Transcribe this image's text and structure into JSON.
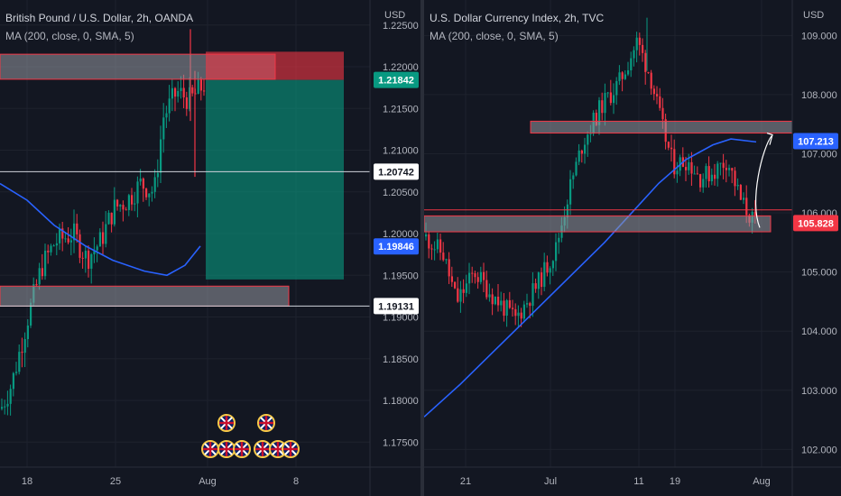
{
  "left": {
    "title": "British Pound / U.S. Dollar, 2h, OANDA",
    "indicator": "MA (200, close, 0, SMA, 5)",
    "currency": "USD",
    "y_ticks": [
      "1.22500",
      "1.22000",
      "1.21500",
      "1.21000",
      "1.20500",
      "1.20000",
      "1.19500",
      "1.19000",
      "1.18500",
      "1.18000",
      "1.17500"
    ],
    "x_ticks": [
      "18",
      "25",
      "Aug",
      "8"
    ],
    "badges": [
      {
        "label": "1.21842",
        "bg": "#089981",
        "fg": "#ffffff"
      },
      {
        "label": "1.20742",
        "bg": "#ffffff",
        "fg": "#131722"
      },
      {
        "label": "1.19846",
        "bg": "#2962ff",
        "fg": "#ffffff"
      },
      {
        "label": "1.19131",
        "bg": "#ffffff",
        "fg": "#131722"
      }
    ]
  },
  "right": {
    "title": "U.S. Dollar Currency Index, 2h, TVC",
    "indicator": "MA (200, close, 0, SMA, 5)",
    "currency": "USD",
    "y_ticks": [
      "109.000",
      "108.000",
      "107.000",
      "106.000",
      "105.000",
      "104.000",
      "103.000",
      "102.000"
    ],
    "x_ticks": [
      "21",
      "Jul",
      "11",
      "19",
      "Aug"
    ],
    "badges": [
      {
        "label": "107.213",
        "bg": "#2962ff",
        "fg": "#ffffff"
      },
      {
        "label": "105.828",
        "bg": "#f23645",
        "fg": "#ffffff"
      }
    ]
  },
  "colors": {
    "up": "#089981",
    "down": "#f23645",
    "ma": "#2962ff",
    "zone_fill": "#9598a1",
    "zone_border": "#f23645",
    "profit": "#089981",
    "loss": "#f23645",
    "grid": "#1e222d"
  },
  "chart_data": [
    {
      "type": "line",
      "name": "GBPUSD 2h",
      "ylim": [
        1.172,
        1.228
      ],
      "approx_close": [
        [
          "Jul 13",
          1.182
        ],
        [
          "Jul 15",
          1.188
        ],
        [
          "Jul 17",
          1.192
        ],
        [
          "Jul 19",
          1.196
        ],
        [
          "Jul 21",
          1.199
        ],
        [
          "Jul 23",
          1.198
        ],
        [
          "Jul 25",
          1.2
        ],
        [
          "Jul 27",
          1.205
        ],
        [
          "Jul 29",
          1.21
        ],
        [
          "Jul 30",
          1.216
        ],
        [
          "Aug 1",
          1.218
        ]
      ],
      "ma200_approx": [
        [
          "Jul 13",
          1.206
        ],
        [
          "Jul 18",
          1.202
        ],
        [
          "Jul 23",
          1.198
        ],
        [
          "Jul 27",
          1.195
        ],
        [
          "Aug 1",
          1.1985
        ]
      ],
      "annotations": {
        "resistance_zone": [
          1.2185,
          1.2215
        ],
        "support_zone": [
          1.1913,
          1.1935
        ],
        "short_position": {
          "entry": 1.21842,
          "stop": 1.2215,
          "target": 1.1945
        },
        "horizontal_line": 1.20742
      }
    },
    {
      "type": "line",
      "name": "DXY 2h",
      "ylim": [
        101.7,
        109.6
      ],
      "approx_close": [
        [
          "Jun 14",
          105.5
        ],
        [
          "Jun 18",
          104.9
        ],
        [
          "Jun 21",
          105.1
        ],
        [
          "Jun 25",
          104.5
        ],
        [
          "Jun 29",
          104.4
        ],
        [
          "Jul 3",
          105.2
        ],
        [
          "Jul 7",
          106.8
        ],
        [
          "Jul 11",
          108.3
        ],
        [
          "Jul 14",
          108.8
        ],
        [
          "Jul 17",
          107.7
        ],
        [
          "Jul 19",
          107.1
        ],
        [
          "Jul 22",
          106.6
        ],
        [
          "Jul 25",
          106.7
        ],
        [
          "Jul 27",
          106.9
        ],
        [
          "Jul 29",
          106.0
        ],
        [
          "Aug 1",
          105.8
        ]
      ],
      "ma200_approx": [
        [
          "Jun 14",
          102.8
        ],
        [
          "Jun 21",
          103.5
        ],
        [
          "Jun 29",
          104.3
        ],
        [
          "Jul 7",
          105.2
        ],
        [
          "Jul 15",
          106.2
        ],
        [
          "Jul 21",
          106.9
        ],
        [
          "Jul 27",
          107.2
        ],
        [
          "Aug 1",
          107.2
        ]
      ],
      "annotations": {
        "upper_zone": [
          107.25,
          107.45
        ],
        "lower_zone": [
          105.6,
          105.95
        ],
        "projection_target": 107.3
      }
    }
  ]
}
